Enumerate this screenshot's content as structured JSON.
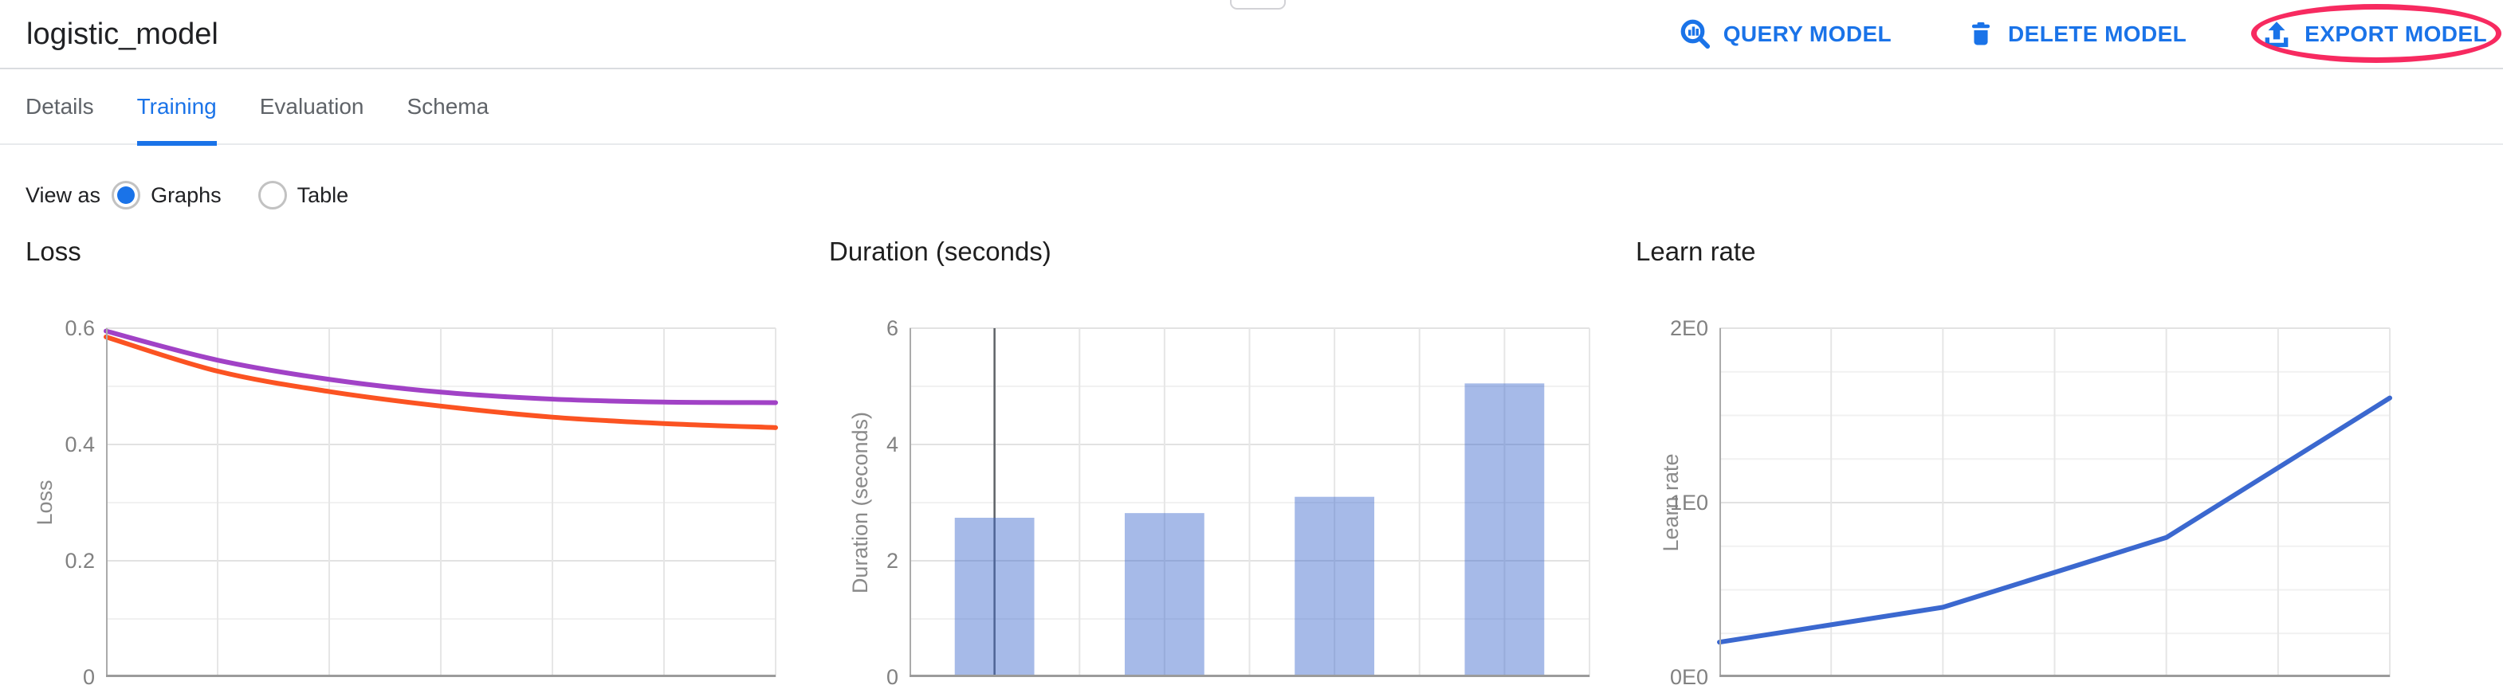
{
  "header": {
    "title": "logistic_model",
    "actions": [
      {
        "label": "QUERY MODEL",
        "icon": "query-magnifier-icon"
      },
      {
        "label": "DELETE MODEL",
        "icon": "trash-icon"
      },
      {
        "label": "EXPORT MODEL",
        "icon": "upload-icon",
        "annotated": true
      }
    ]
  },
  "annotation": {
    "shape": "ellipse",
    "target": "EXPORT MODEL",
    "color": "#f72a60"
  },
  "tabs": [
    {
      "label": "Details",
      "active": false
    },
    {
      "label": "Training",
      "active": true
    },
    {
      "label": "Evaluation",
      "active": false
    },
    {
      "label": "Schema",
      "active": false
    }
  ],
  "view_as": {
    "label": "View as",
    "options": [
      {
        "label": "Graphs",
        "selected": true
      },
      {
        "label": "Table",
        "selected": false
      }
    ]
  },
  "colors": {
    "accent": "#1a73e8",
    "annotation": "#f72a60",
    "loss_line_purple": "#a142c6",
    "loss_line_orange": "#fb5322",
    "duration_bar": "#3a66cc",
    "learn_rate_line": "#3b68cf"
  },
  "chart_data": [
    {
      "type": "line",
      "title": "Loss",
      "ylabel": "Loss",
      "ylim": [
        0,
        0.6
      ],
      "yticks": [
        {
          "v": 0.6,
          "label": "0.6"
        },
        {
          "v": 0.4,
          "label": "0.4"
        },
        {
          "v": 0.2,
          "label": "0.2"
        },
        {
          "v": 0,
          "label": "0"
        }
      ],
      "minor_step": 0.1,
      "x_intervals": 6,
      "grid": true,
      "legend": "none",
      "smooth": true,
      "series": [
        {
          "name": "loss-purple-line",
          "color": "#a142c6",
          "x_frac": [
            0,
            0.1667,
            0.3333,
            0.5,
            0.6667,
            0.8333,
            1
          ],
          "values": [
            0.595,
            0.545,
            0.512,
            0.49,
            0.478,
            0.473,
            0.472
          ]
        },
        {
          "name": "loss-orange-line",
          "color": "#fb5322",
          "x_frac": [
            0,
            0.1667,
            0.3333,
            0.5,
            0.6667,
            0.8333,
            1
          ],
          "values": [
            0.585,
            0.526,
            0.491,
            0.466,
            0.447,
            0.436,
            0.429
          ]
        }
      ]
    },
    {
      "type": "bar",
      "title": "Duration (seconds)",
      "ylabel": "Duration (seconds)",
      "ylim": [
        0,
        6
      ],
      "yticks": [
        {
          "v": 6,
          "label": "6"
        },
        {
          "v": 4,
          "label": "4"
        },
        {
          "v": 2,
          "label": "2"
        },
        {
          "v": 0,
          "label": "0"
        }
      ],
      "minor_step": 1,
      "x_intervals": 8,
      "grid": true,
      "legend": "none",
      "bars": {
        "centers_frac": [
          0.125,
          0.375,
          0.625,
          0.875
        ],
        "values": [
          2.74,
          2.82,
          3.1,
          5.05
        ],
        "color": "#3a66cc",
        "opacity": 0.45,
        "width_frac": 0.117
      },
      "crosshair_frac": 0.125
    },
    {
      "type": "line",
      "title": "Learn rate",
      "ylabel": "Learn rate",
      "ylim": [
        0,
        2
      ],
      "yticks": [
        {
          "v": 2,
          "label": "2E0"
        },
        {
          "v": 1,
          "label": "1E0"
        },
        {
          "v": 0,
          "label": "0E0"
        }
      ],
      "minor_step": 0.25,
      "x_intervals": 6,
      "grid": true,
      "legend": "none",
      "smooth": false,
      "series": [
        {
          "name": "learn-rate-line",
          "color": "#3b68cf",
          "x_frac": [
            0,
            0.3333,
            0.6667,
            1
          ],
          "values": [
            0.2,
            0.4,
            0.8,
            1.6
          ]
        }
      ]
    }
  ]
}
